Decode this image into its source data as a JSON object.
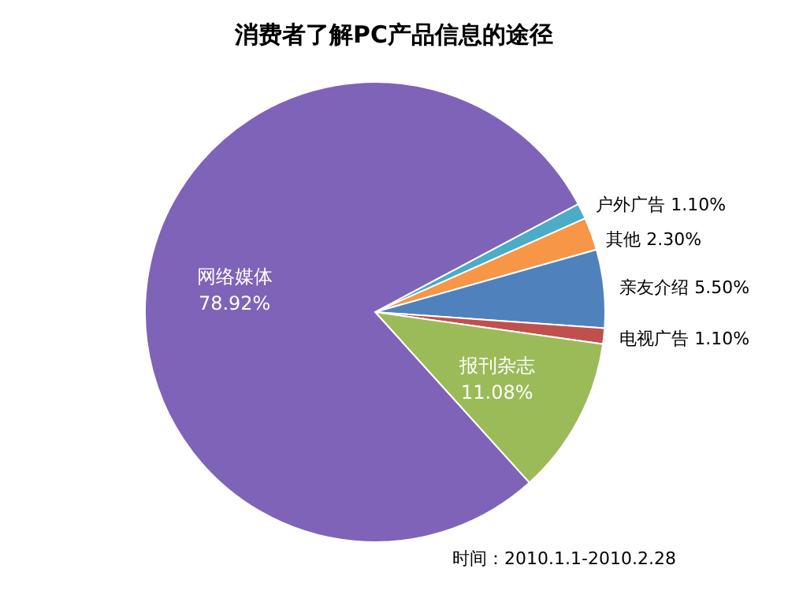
{
  "chart_data": {
    "type": "pie",
    "title": "消费者了解PC产品信息的途径",
    "categories": [
      "户外广告",
      "其他",
      "亲友介绍",
      "电视广告",
      "报刊杂志",
      "网络媒体"
    ],
    "values": [
      1.1,
      2.3,
      5.5,
      1.1,
      11.08,
      78.92
    ],
    "value_labels": [
      "1.10%",
      "2.30%",
      "5.50%",
      "1.10%",
      "11.08%",
      "78.92%"
    ],
    "colors": [
      "#4bacc6",
      "#f79646",
      "#4f81bd",
      "#c0504d",
      "#9bbb59",
      "#7f63b8"
    ],
    "annotations": [
      "时间：2010.1.1-2010.2.28"
    ]
  }
}
